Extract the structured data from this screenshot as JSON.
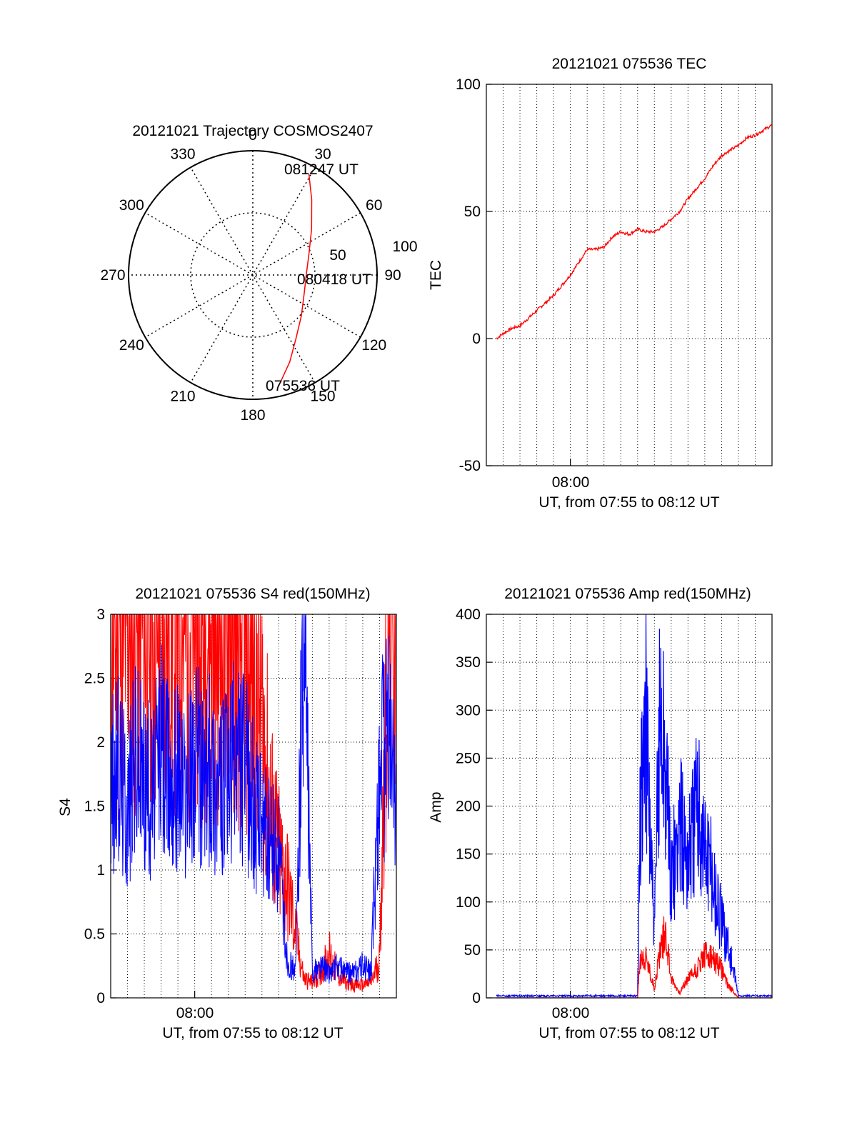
{
  "chart_data": [
    {
      "id": "polar",
      "type": "scatter",
      "title": "20121021 Trajectory COSMOS2407",
      "coordinate_system": "polar",
      "azimuth_labels": [
        "0",
        "30",
        "60",
        "90",
        "120",
        "150",
        "180",
        "210",
        "240",
        "270",
        "300",
        "330"
      ],
      "radial_labels": [
        "50",
        "100"
      ],
      "rlim": [
        0,
        100
      ],
      "grid": true,
      "series": [
        {
          "color": "#ff0000",
          "points": [
            {
              "az": 167,
              "r": 92
            },
            {
              "az": 157,
              "r": 76
            },
            {
              "az": 146,
              "r": 62
            },
            {
              "az": 130,
              "r": 51
            },
            {
              "az": 110,
              "r": 44
            },
            {
              "az": 90,
              "r": 43
            },
            {
              "az": 70,
              "r": 48
            },
            {
              "az": 52,
              "r": 60
            },
            {
              "az": 38,
              "r": 77
            },
            {
              "az": 29,
              "r": 93
            }
          ]
        }
      ],
      "annotations": [
        "081247 UT",
        "080418 UT",
        "075536 UT"
      ]
    },
    {
      "id": "tec",
      "type": "line",
      "title": "20121021 075536 TEC",
      "xlabel": "UT, from 07:55 to 08:12 UT",
      "ylabel": "TEC",
      "xlim": [
        "07:55",
        "08:12"
      ],
      "ylim": [
        -50,
        100
      ],
      "y_ticks": [
        "100",
        "50",
        "0",
        "-50"
      ],
      "x_ticks": [
        "08:00"
      ],
      "grid": true,
      "series": [
        {
          "color": "#ff0000",
          "x": [
            "07:55:36",
            "07:56:00",
            "07:56:30",
            "07:57:00",
            "07:57:30",
            "07:58:00",
            "07:58:30",
            "07:59:00",
            "07:59:30",
            "08:00:00",
            "08:00:30",
            "08:01:00",
            "08:01:30",
            "08:02:00",
            "08:02:30",
            "08:03:00",
            "08:03:30",
            "08:04:00",
            "08:04:30",
            "08:05:00",
            "08:05:30",
            "08:06:00",
            "08:06:30",
            "08:07:00",
            "08:07:30",
            "08:08:00",
            "08:08:30",
            "08:09:00",
            "08:09:30",
            "08:10:00",
            "08:10:30",
            "08:11:00",
            "08:11:30",
            "08:12:00"
          ],
          "y": [
            0,
            2,
            4,
            5,
            8,
            11,
            14,
            17,
            21,
            25,
            30,
            35,
            35,
            36,
            40,
            42,
            41,
            43,
            42,
            42,
            44,
            47,
            50,
            55,
            59,
            63,
            68,
            72,
            74,
            76,
            79,
            80,
            82,
            84
          ]
        }
      ]
    },
    {
      "id": "s4",
      "type": "line",
      "title": "20121021 075536 S4 red(150MHz)",
      "xlabel": "UT, from 07:55 to 08:12 UT",
      "ylabel": "S4",
      "xlim": [
        "07:55",
        "08:12"
      ],
      "ylim": [
        0,
        3
      ],
      "y_ticks": [
        "3",
        "2.5",
        "2",
        "1.5",
        "1",
        "0.5",
        "0"
      ],
      "x_ticks": [
        "08:00"
      ],
      "grid": true,
      "series": [
        {
          "color": "#ff0000",
          "x": [
            "07:55:00",
            "07:55:30",
            "07:56:00",
            "07:56:30",
            "07:57:00",
            "07:57:30",
            "07:58:00",
            "07:58:30",
            "07:59:00",
            "07:59:30",
            "08:00:00",
            "08:00:30",
            "08:01:00",
            "08:01:30",
            "08:02:00",
            "08:02:30",
            "08:03:00",
            "08:03:30",
            "08:04:00",
            "08:04:30",
            "08:05:00",
            "08:05:30",
            "08:06:00",
            "08:06:30",
            "08:07:00",
            "08:07:30",
            "08:08:00",
            "08:08:30",
            "08:09:00",
            "08:09:30",
            "08:10:00",
            "08:10:30",
            "08:11:00",
            "08:11:30",
            "08:12:00"
          ],
          "y": [
            3,
            2.8,
            3,
            2.9,
            3,
            2.9,
            3,
            3,
            2.9,
            3,
            3,
            2.9,
            3,
            2.9,
            3,
            2.8,
            2.7,
            2.5,
            2.2,
            1.5,
            1.1,
            0.9,
            0.5,
            0.15,
            0.12,
            0.2,
            0.35,
            0.18,
            0.12,
            0.1,
            0.1,
            0.12,
            0.3,
            3,
            3
          ]
        },
        {
          "color": "#0000ff",
          "x": [
            "07:55:00",
            "07:55:30",
            "07:56:00",
            "07:56:30",
            "07:57:00",
            "07:57:30",
            "07:58:00",
            "07:58:30",
            "07:59:00",
            "07:59:30",
            "08:00:00",
            "08:00:30",
            "08:01:00",
            "08:01:30",
            "08:02:00",
            "08:02:30",
            "08:03:00",
            "08:03:30",
            "08:04:00",
            "08:04:30",
            "08:05:00",
            "08:05:30",
            "08:06:00",
            "08:06:30",
            "08:07:00",
            "08:07:30",
            "08:08:00",
            "08:08:30",
            "08:09:00",
            "08:09:30",
            "08:10:00",
            "08:10:30",
            "08:11:00",
            "08:11:30",
            "08:12:00"
          ],
          "y": [
            1.6,
            1.8,
            1.5,
            1.9,
            1.7,
            1.6,
            2,
            1.7,
            1.8,
            1.6,
            1.9,
            1.7,
            1.8,
            1.6,
            1.7,
            1.9,
            1.8,
            1.5,
            1.3,
            1.2,
            1.1,
            0.3,
            0.2,
            3,
            0.2,
            0.25,
            0.2,
            0.25,
            0.2,
            0.2,
            0.25,
            0.2,
            1.8,
            2,
            1.7
          ]
        }
      ]
    },
    {
      "id": "amp",
      "type": "line",
      "title": "20121021 075536 Amp red(150MHz)",
      "xlabel": "UT, from 07:55 to 08:12 UT",
      "ylabel": "Amp",
      "xlim": [
        "07:55",
        "08:12"
      ],
      "ylim": [
        0,
        400
      ],
      "y_ticks": [
        "400",
        "350",
        "300",
        "250",
        "200",
        "150",
        "100",
        "50",
        "0"
      ],
      "x_ticks": [
        "08:00"
      ],
      "grid": true,
      "series": [
        {
          "color": "#ff0000",
          "x": [
            "07:55:36",
            "08:03:00",
            "08:04:00",
            "08:04:10",
            "08:04:30",
            "08:05:00",
            "08:05:20",
            "08:05:40",
            "08:06:00",
            "08:06:30",
            "08:07:00",
            "08:07:30",
            "08:08:00",
            "08:08:30",
            "08:09:00",
            "08:09:20",
            "08:10:00",
            "08:12:00"
          ],
          "y": [
            0,
            0,
            0,
            45,
            40,
            10,
            50,
            70,
            20,
            5,
            20,
            30,
            45,
            40,
            30,
            15,
            0,
            0
          ]
        },
        {
          "color": "#0000ff",
          "x": [
            "07:55:36",
            "08:03:00",
            "08:04:00",
            "08:04:10",
            "08:04:30",
            "08:05:00",
            "08:05:20",
            "08:05:40",
            "08:06:00",
            "08:06:30",
            "08:07:00",
            "08:07:30",
            "08:08:00",
            "08:08:30",
            "08:09:00",
            "08:09:20",
            "08:10:00",
            "08:12:00"
          ],
          "y": [
            2,
            2,
            2,
            200,
            290,
            60,
            310,
            240,
            120,
            180,
            150,
            200,
            160,
            120,
            80,
            60,
            2,
            2
          ]
        }
      ]
    }
  ]
}
